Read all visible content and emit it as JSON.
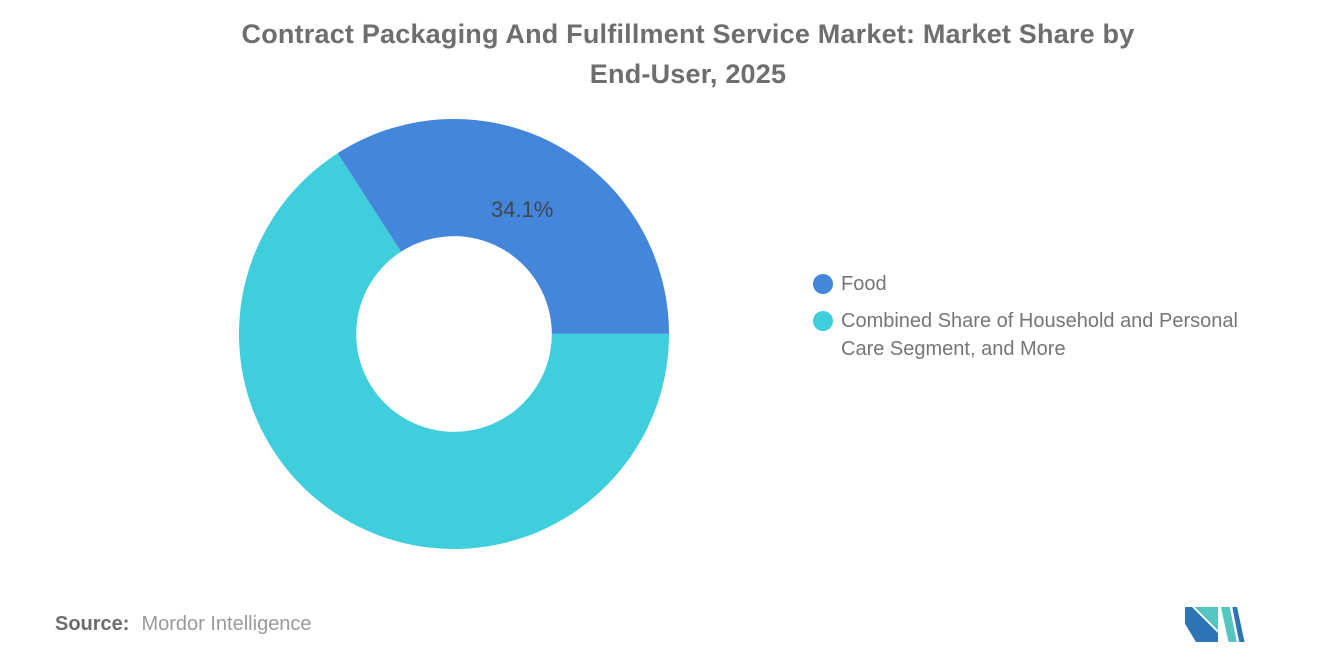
{
  "title": {
    "line1": "Contract Packaging And Fulfillment Service Market: Market Share by",
    "line2": "End-User, 2025"
  },
  "chart_data": {
    "type": "pie",
    "title": "Contract Packaging And Fulfillment Service Market: Market Share by End-User, 2025",
    "donut": true,
    "inner_radius_ratio": 0.455,
    "start_angle_deg": -32.8,
    "legend_position": "right",
    "background": "#ffffff",
    "series": [
      {
        "name": "Food",
        "value": 34.1,
        "color": "#4486D9",
        "data_label": "34.1%"
      },
      {
        "name": "Combined Share of Household and Personal Care Segment, and More",
        "value": 65.9,
        "color": "#3ECEDC",
        "data_label": null
      }
    ]
  },
  "legend": {
    "items": [
      {
        "label": "Food",
        "color": "#4486D9"
      },
      {
        "label": "Combined Share of Household and Personal Care Segment, and More",
        "color": "#3ECEDC"
      }
    ]
  },
  "source": {
    "prefix": "Source:",
    "text": "Mordor Intelligence"
  },
  "logo": {
    "teal": "#55C6C0",
    "blue": "#2E75B6"
  }
}
